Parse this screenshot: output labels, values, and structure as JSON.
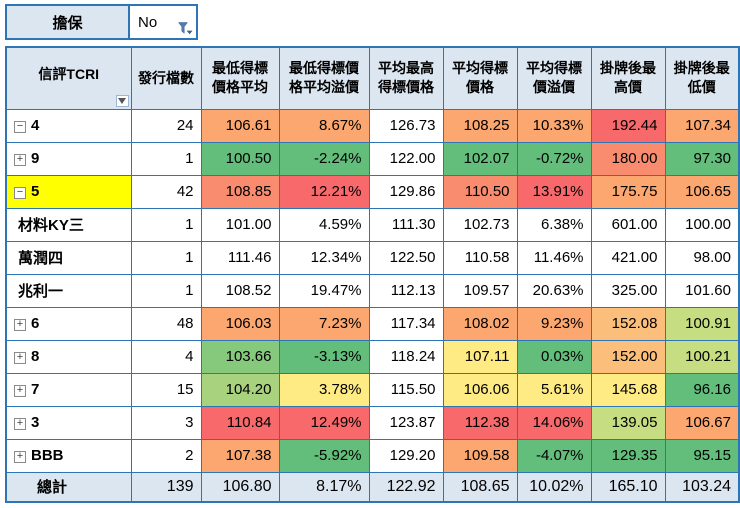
{
  "filter": {
    "label": "擔保",
    "value": "No"
  },
  "palette": {
    "red": "#F8696B",
    "redorange": "#F98B6E",
    "orange": "#FBA76F",
    "lightorange": "#FCBF7B",
    "yellow": "#FFEB84",
    "yellowgreen": "#C6DE81",
    "ygreen2": "#A9D27F",
    "lightgreen": "#86C97D",
    "green": "#63BE7B",
    "white": "#FFFFFF",
    "header": "#DCE6F1",
    "rowYellow": "#FFFF00",
    "border": "#2E75B6"
  },
  "table": {
    "headers": [
      "信評TCRI",
      "發行檔數",
      "最低得標價格平均",
      "最低得標價格平均溢價",
      "平均最高得標價格",
      "平均得標價格",
      "平均得標價溢價",
      "掛牌後最高價",
      "掛牌後最低價"
    ],
    "rows": [
      {
        "label": "4",
        "toggle": "minus",
        "count": "24",
        "cells": [
          {
            "v": "106.61",
            "c": "orange"
          },
          {
            "v": "8.67%",
            "c": "orange"
          },
          {
            "v": "126.73",
            "c": "white"
          },
          {
            "v": "108.25",
            "c": "orange"
          },
          {
            "v": "10.33%",
            "c": "orange"
          },
          {
            "v": "192.44",
            "c": "red"
          },
          {
            "v": "107.34",
            "c": "orange"
          }
        ]
      },
      {
        "label": "9",
        "toggle": "plus",
        "count": "1",
        "cells": [
          {
            "v": "100.50",
            "c": "green"
          },
          {
            "v": "-2.24%",
            "c": "green"
          },
          {
            "v": "122.00",
            "c": "white"
          },
          {
            "v": "102.07",
            "c": "green"
          },
          {
            "v": "-0.72%",
            "c": "green"
          },
          {
            "v": "180.00",
            "c": "redorange"
          },
          {
            "v": "97.30",
            "c": "green"
          }
        ]
      },
      {
        "label": "5",
        "toggle": "minus",
        "label_bg": "rowYellow",
        "count": "42",
        "cells": [
          {
            "v": "108.85",
            "c": "redorange"
          },
          {
            "v": "12.21%",
            "c": "red"
          },
          {
            "v": "129.86",
            "c": "white"
          },
          {
            "v": "110.50",
            "c": "redorange"
          },
          {
            "v": "13.91%",
            "c": "red"
          },
          {
            "v": "175.75",
            "c": "orange"
          },
          {
            "v": "106.65",
            "c": "orange"
          }
        ]
      },
      {
        "label": "材料KY三",
        "toggle": null,
        "count": "1",
        "cells": [
          {
            "v": "101.00",
            "c": "white"
          },
          {
            "v": "4.59%",
            "c": "white"
          },
          {
            "v": "111.30",
            "c": "white"
          },
          {
            "v": "102.73",
            "c": "white"
          },
          {
            "v": "6.38%",
            "c": "white"
          },
          {
            "v": "601.00",
            "c": "white"
          },
          {
            "v": "100.00",
            "c": "white"
          }
        ]
      },
      {
        "label": "萬潤四",
        "toggle": null,
        "count": "1",
        "cells": [
          {
            "v": "111.46",
            "c": "white"
          },
          {
            "v": "12.34%",
            "c": "white"
          },
          {
            "v": "122.50",
            "c": "white"
          },
          {
            "v": "110.58",
            "c": "white"
          },
          {
            "v": "11.46%",
            "c": "white"
          },
          {
            "v": "421.00",
            "c": "white"
          },
          {
            "v": "98.00",
            "c": "white"
          }
        ]
      },
      {
        "label": "兆利一",
        "toggle": null,
        "count": "1",
        "cells": [
          {
            "v": "108.52",
            "c": "white"
          },
          {
            "v": "19.47%",
            "c": "white"
          },
          {
            "v": "112.13",
            "c": "white"
          },
          {
            "v": "109.57",
            "c": "white"
          },
          {
            "v": "20.63%",
            "c": "white"
          },
          {
            "v": "325.00",
            "c": "white"
          },
          {
            "v": "101.60",
            "c": "white"
          }
        ]
      },
      {
        "label": "6",
        "toggle": "plus",
        "count": "48",
        "cells": [
          {
            "v": "106.03",
            "c": "orange"
          },
          {
            "v": "7.23%",
            "c": "orange"
          },
          {
            "v": "117.34",
            "c": "white"
          },
          {
            "v": "108.02",
            "c": "orange"
          },
          {
            "v": "9.23%",
            "c": "orange"
          },
          {
            "v": "152.08",
            "c": "lightorange"
          },
          {
            "v": "100.91",
            "c": "yellowgreen"
          }
        ]
      },
      {
        "label": "8",
        "toggle": "plus",
        "count": "4",
        "cells": [
          {
            "v": "103.66",
            "c": "lightgreen"
          },
          {
            "v": "-3.13%",
            "c": "green"
          },
          {
            "v": "118.24",
            "c": "white"
          },
          {
            "v": "107.11",
            "c": "yellow"
          },
          {
            "v": "0.03%",
            "c": "green"
          },
          {
            "v": "152.00",
            "c": "lightorange"
          },
          {
            "v": "100.21",
            "c": "yellowgreen"
          }
        ]
      },
      {
        "label": "7",
        "toggle": "plus",
        "count": "15",
        "cells": [
          {
            "v": "104.20",
            "c": "ygreen2"
          },
          {
            "v": "3.78%",
            "c": "yellow"
          },
          {
            "v": "115.50",
            "c": "white"
          },
          {
            "v": "106.06",
            "c": "yellow"
          },
          {
            "v": "5.61%",
            "c": "yellow"
          },
          {
            "v": "145.68",
            "c": "yellow"
          },
          {
            "v": "96.16",
            "c": "green"
          }
        ]
      },
      {
        "label": "3",
        "toggle": "plus",
        "count": "3",
        "cells": [
          {
            "v": "110.84",
            "c": "red"
          },
          {
            "v": "12.49%",
            "c": "red"
          },
          {
            "v": "123.87",
            "c": "white"
          },
          {
            "v": "112.38",
            "c": "red"
          },
          {
            "v": "14.06%",
            "c": "red"
          },
          {
            "v": "139.05",
            "c": "yellowgreen"
          },
          {
            "v": "106.67",
            "c": "orange"
          }
        ]
      },
      {
        "label": "BBB",
        "toggle": "plus",
        "count": "2",
        "cells": [
          {
            "v": "107.38",
            "c": "orange"
          },
          {
            "v": "-5.92%",
            "c": "green"
          },
          {
            "v": "129.20",
            "c": "white"
          },
          {
            "v": "109.58",
            "c": "orange"
          },
          {
            "v": "-4.07%",
            "c": "green"
          },
          {
            "v": "129.35",
            "c": "green"
          },
          {
            "v": "95.15",
            "c": "green"
          }
        ]
      }
    ],
    "total": {
      "label": "總計",
      "count": "139",
      "cells": [
        "106.80",
        "8.17%",
        "122.92",
        "108.65",
        "10.02%",
        "165.10",
        "103.24"
      ]
    }
  }
}
